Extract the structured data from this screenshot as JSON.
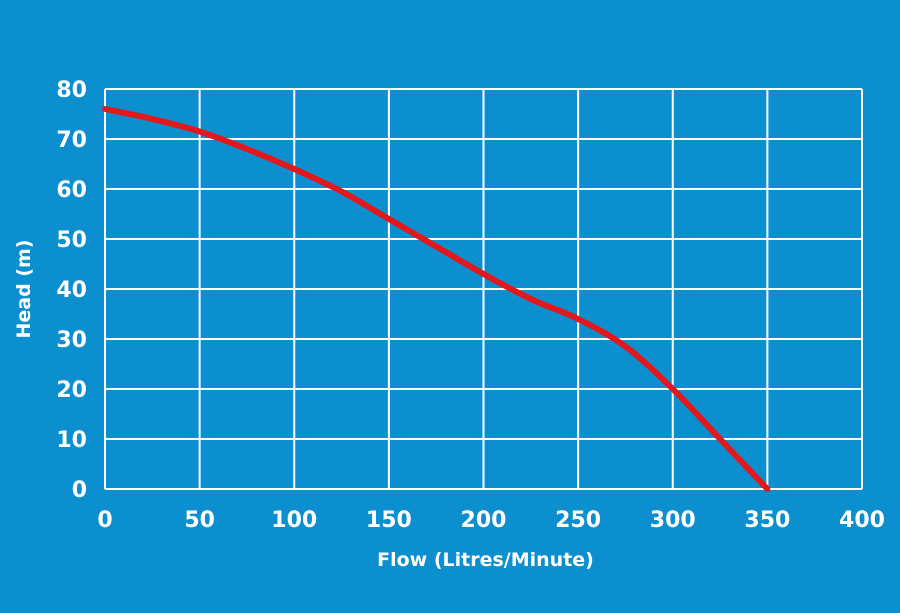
{
  "chart_data": {
    "type": "line",
    "title": "",
    "xlabel": "Flow (Litres/Minute)",
    "ylabel": "Head (m)",
    "xlim": [
      0,
      400
    ],
    "ylim": [
      0,
      80
    ],
    "x_ticks": [
      0,
      50,
      100,
      150,
      200,
      250,
      300,
      350,
      400
    ],
    "y_ticks": [
      0,
      10,
      20,
      30,
      40,
      50,
      60,
      70,
      80
    ],
    "grid": true,
    "legend": "none",
    "series": [
      {
        "color": "#e3181d",
        "x": [
          0,
          25,
          50,
          75,
          100,
          125,
          150,
          175,
          200,
          225,
          250,
          275,
          300,
          325,
          350
        ],
        "y": [
          76,
          74,
          71.5,
          68,
          64,
          59.5,
          54,
          48.5,
          43,
          38,
          34,
          28.5,
          20,
          10,
          0
        ]
      }
    ]
  },
  "colors": {
    "background": "#0b8fcf",
    "grid": "#ffffff",
    "text": "#ffffff",
    "series": "#e3181d"
  }
}
